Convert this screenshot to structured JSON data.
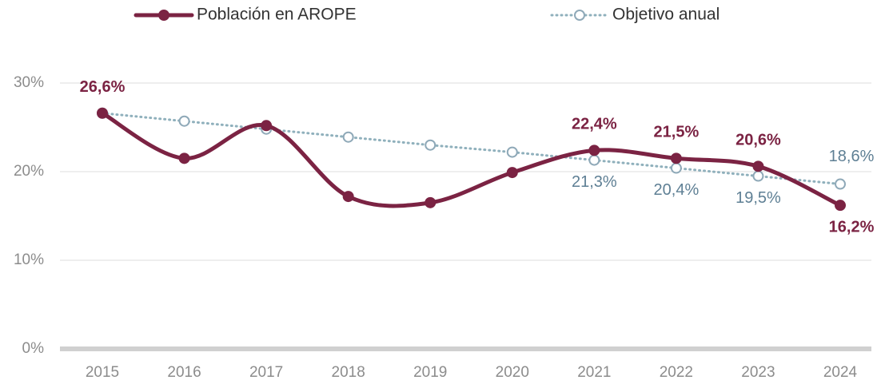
{
  "chart_data": {
    "type": "line",
    "categories": [
      "2015",
      "2016",
      "2017",
      "2018",
      "2019",
      "2020",
      "2021",
      "2022",
      "2023",
      "2024"
    ],
    "series": [
      {
        "name": "Población en AROPE",
        "color": "#7b2343",
        "values": [
          26.6,
          21.5,
          25.2,
          17.2,
          16.5,
          19.9,
          22.4,
          21.5,
          20.6,
          16.2
        ],
        "value_labels": [
          "26,6%",
          null,
          null,
          null,
          null,
          null,
          "22,4%",
          "21,5%",
          "20,6%",
          "16,2%"
        ]
      },
      {
        "name": "Objetivo anual",
        "color": "#8fb0bc",
        "values": [
          26.6,
          25.7,
          24.8,
          23.9,
          23.0,
          22.2,
          21.3,
          20.4,
          19.5,
          18.6
        ],
        "value_labels": [
          null,
          null,
          null,
          null,
          null,
          null,
          "21,3%",
          "20,4%",
          "19,5%",
          "18,6%"
        ]
      }
    ],
    "ylim": [
      0,
      30
    ],
    "yticks": [
      {
        "value": 0,
        "label": "0%"
      },
      {
        "value": 10,
        "label": "10%"
      },
      {
        "value": 20,
        "label": "20%"
      },
      {
        "value": 30,
        "label": "30%"
      }
    ],
    "grid": true,
    "legend": "top"
  }
}
